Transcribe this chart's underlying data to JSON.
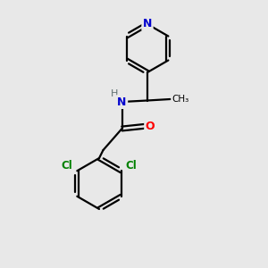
{
  "background_color": "#e8e8e8",
  "bond_color": "#000000",
  "N_color": "#0000cd",
  "O_color": "#ff0000",
  "Cl_color": "#008000",
  "figsize": [
    3.0,
    3.0
  ],
  "dpi": 100,
  "xlim": [
    0,
    10
  ],
  "ylim": [
    0,
    10
  ]
}
